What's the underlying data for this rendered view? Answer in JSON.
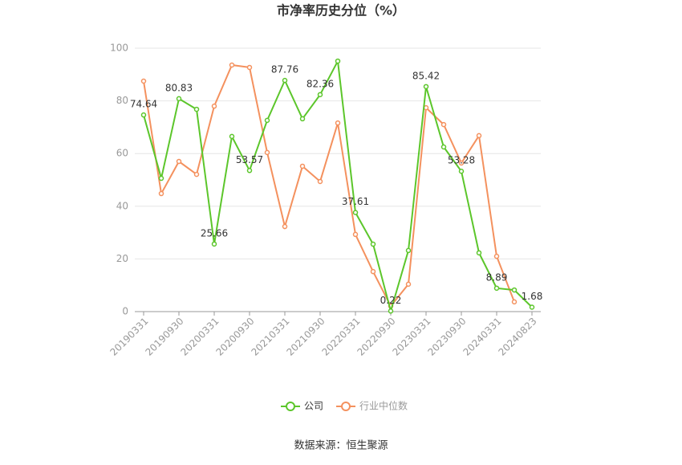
{
  "chart_data": {
    "type": "line",
    "title": "市净率历史分位（%）",
    "source": "数据来源：恒生聚源",
    "categories": [
      "20190331",
      null,
      "20190930",
      null,
      "20200331",
      null,
      "20200930",
      null,
      "20210331",
      null,
      "20210930",
      null,
      "20220331",
      null,
      "20220930",
      null,
      "20230331",
      null,
      "20230930",
      null,
      "20240331",
      null,
      "20240823"
    ],
    "series": [
      {
        "name": "公司",
        "color": "#5cc62b",
        "values": [
          74.64,
          50.6,
          80.83,
          76.8,
          25.66,
          66.5,
          53.57,
          72.6,
          87.76,
          73.2,
          82.36,
          95.1,
          37.61,
          25.6,
          0.22,
          23.2,
          85.42,
          62.5,
          53.28,
          22.3,
          8.89,
          8.2,
          1.68
        ],
        "value_labels": [
          "74.64",
          null,
          "80.83",
          null,
          "25.66",
          null,
          "53.57",
          null,
          "87.76",
          null,
          "82.36",
          null,
          "37.61",
          null,
          "0.22",
          null,
          "85.42",
          null,
          "53.28",
          null,
          "8.89",
          null,
          "1.68"
        ]
      },
      {
        "name": "行业中位数",
        "color": "#f4915e",
        "values": [
          87.5,
          44.8,
          57.0,
          52.1,
          78.0,
          93.6,
          92.7,
          60.4,
          32.3,
          55.2,
          49.4,
          71.6,
          29.3,
          15.2,
          2.1,
          10.4,
          77.4,
          71.0,
          56.4,
          66.8,
          21.0,
          3.7,
          null
        ]
      }
    ],
    "ylim": [
      0,
      100
    ],
    "yticks": [
      0,
      20,
      40,
      60,
      80,
      100
    ],
    "grid": true,
    "legend": "bottom"
  }
}
